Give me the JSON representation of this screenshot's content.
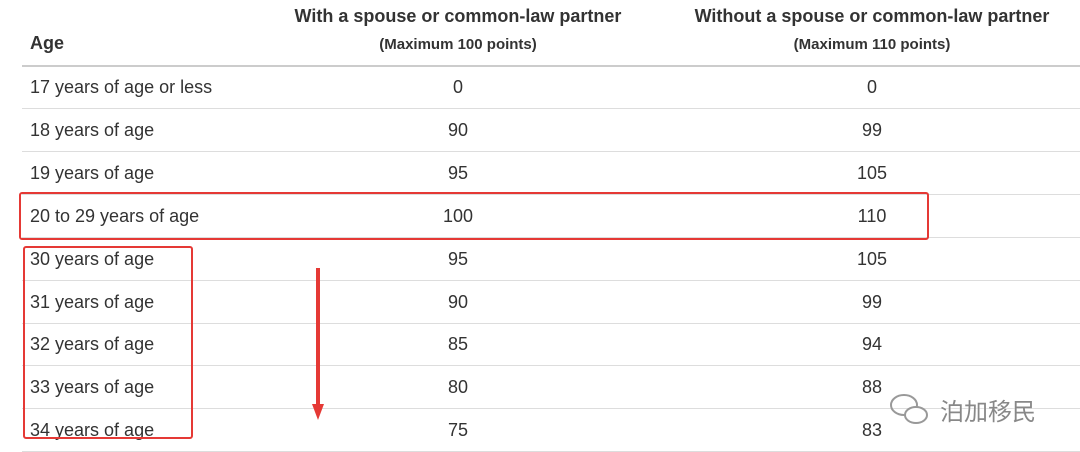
{
  "table": {
    "headers": [
      "Age",
      "With a spouse or common-law partner",
      "Without a spouse or common-law partner"
    ],
    "subheaders": [
      "(Maximum 100 points)",
      "(Maximum 110 points)"
    ],
    "rows": [
      [
        "17 years of age or less",
        0,
        0
      ],
      [
        "18 years of age",
        90,
        99
      ],
      [
        "19 years of age",
        95,
        105
      ],
      [
        "20 to 29 years of age",
        100,
        110
      ],
      [
        "30 years of age",
        95,
        105
      ],
      [
        "31 years of age",
        90,
        99
      ],
      [
        "32 years of age",
        85,
        94
      ],
      [
        "33 years of age",
        80,
        88
      ],
      [
        "34 years of age",
        75,
        83
      ]
    ]
  },
  "watermark": "泊加移民"
}
